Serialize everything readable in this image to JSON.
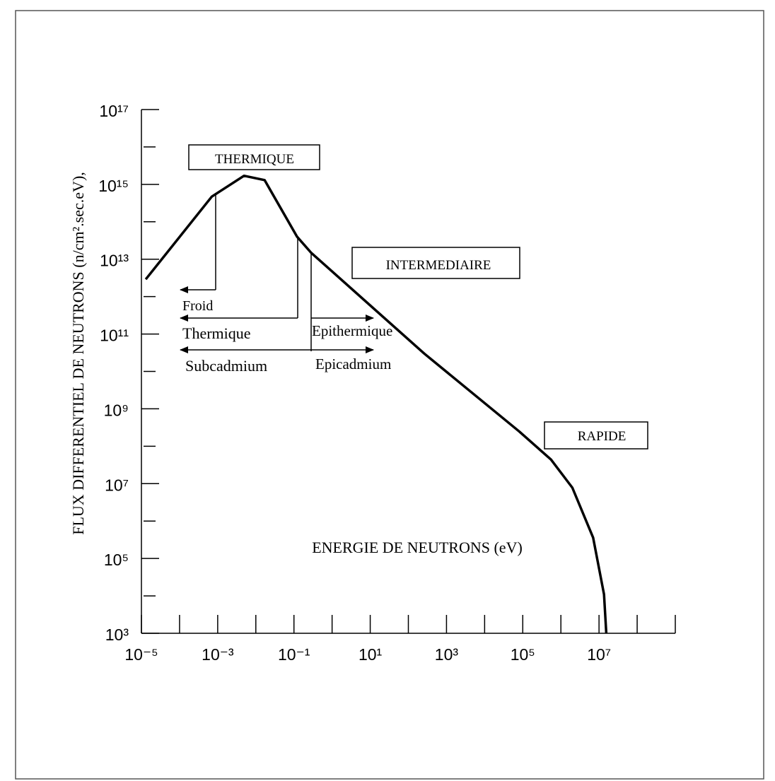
{
  "chart_data": {
    "type": "line",
    "x_label": "ENERGIE DE NEUTRONS  (eV)",
    "y_label": "FLUX DIFFERENTIEL DE NEUTRONS (n/cm².sec.eV),",
    "x": [
      1.3e-05,
      0.0007,
      0.0049,
      0.017,
      0.12,
      0.28,
      260,
      80000,
      550000,
      2000000,
      7000000,
      13500000,
      15500000
    ],
    "values": [
      2900000000000.0,
      470000000000000.0,
      1700000000000000.0,
      1300000000000000.0,
      40000000000000.0,
      15000000000000.0,
      30000000000.0,
      250000000.0,
      44000000.0,
      7800000.0,
      360000.0,
      11000.0,
      1000.0
    ],
    "color": "#000000",
    "log_x": true,
    "log_y": true,
    "xlim": [
      1e-05,
      1000000000.0
    ],
    "ylim": [
      1000.0,
      1e+17
    ],
    "xticks": [
      {
        "value": 1e-05,
        "label": "10⁻⁵"
      },
      {
        "value": 0.001,
        "label": "10⁻³"
      },
      {
        "value": 0.1,
        "label": "10⁻¹"
      },
      {
        "value": 10,
        "label": "10¹"
      },
      {
        "value": 1000,
        "label": "10³"
      },
      {
        "value": 100000,
        "label": "10⁵"
      },
      {
        "value": 10000000,
        "label": "10⁷"
      }
    ],
    "xminor_ticks": [
      0.0001,
      0.01,
      1,
      100,
      10000,
      1000000,
      100000000,
      1000000000
    ],
    "yticks": [
      {
        "value": 1000.0,
        "label": "10³"
      },
      {
        "value": 100000.0,
        "label": "10⁵"
      },
      {
        "value": 10000000.0,
        "label": "10⁷"
      },
      {
        "value": 1000000000.0,
        "label": "10⁹"
      },
      {
        "value": 100000000000.0,
        "label": "10¹¹"
      },
      {
        "value": 10000000000000.0,
        "label": "10¹³"
      },
      {
        "value": 1000000000000000.0,
        "label": "10¹⁵"
      },
      {
        "value": 1e+17,
        "label": "10¹⁷"
      }
    ],
    "yminor_ticks": [
      10000.0,
      1000000.0,
      100000000.0,
      10000000000.0,
      1000000000000.0,
      100000000000000.0,
      1e+16
    ],
    "annotations": {
      "thermique_box": "THERMIQUE",
      "intermediaire_box": "INTERMEDIAIRE",
      "rapide_box": "RAPIDE",
      "froid": "Froid",
      "thermique": "Thermique",
      "epithermique": "Epithermique",
      "subcadmium": "Subcadmium",
      "epicadmium": "Epicadmium"
    }
  }
}
